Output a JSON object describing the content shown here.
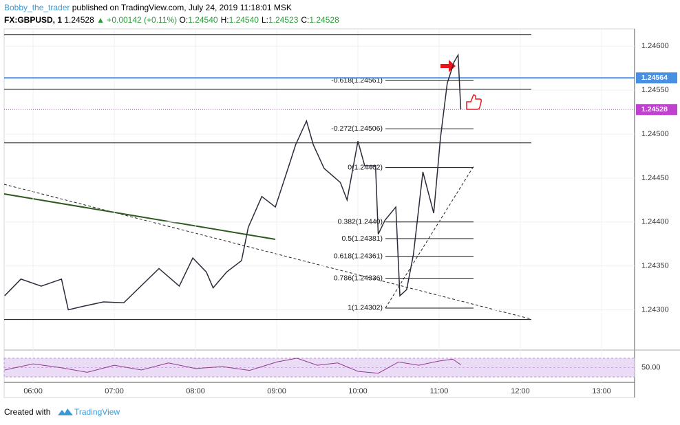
{
  "header": {
    "author": "Bobby_the_trader",
    "published": "published on TradingView.com, July 24, 2019 11:18:01 MSK",
    "symbol": "FX:GBPUSD, 1",
    "last": "1.24528",
    "change": "▲ +0.00142 (+0.11%)",
    "ohlc": [
      {
        "k": "O:",
        "v": "1.24540"
      },
      {
        "k": "H:",
        "v": "1.24540"
      },
      {
        "k": "L:",
        "v": "1.24523"
      },
      {
        "k": "C:",
        "v": "1.24528"
      }
    ]
  },
  "footer": {
    "created": "Created with",
    "brand": "TradingView"
  },
  "chart_data": {
    "type": "line",
    "color": "#2a2a3a",
    "x": [
      339,
      351,
      366,
      381,
      386,
      397,
      412,
      427,
      437,
      453,
      468,
      478,
      488,
      493,
      503,
      514,
      519,
      529,
      539,
      549,
      554,
      562,
      567,
      575,
      587,
      592,
      600,
      605,
      613,
      615,
      620,
      628,
      631,
      636,
      641,
      648,
      656,
      661,
      666,
      671,
      674,
      676
    ],
    "values": [
      1.24316,
      1.24335,
      1.24327,
      1.24335,
      1.243,
      1.24304,
      1.24309,
      1.24308,
      1.24323,
      1.24347,
      1.24327,
      1.24359,
      1.24343,
      1.24325,
      1.24343,
      1.24356,
      1.24394,
      1.24429,
      1.24417,
      1.24464,
      1.24488,
      1.24515,
      1.24488,
      1.24461,
      1.24445,
      1.24425,
      1.24492,
      1.24464,
      1.24464,
      1.24386,
      1.24402,
      1.24417,
      1.24316,
      1.24323,
      1.24363,
      1.24457,
      1.2441,
      1.24496,
      1.24558,
      1.24582,
      1.2459,
      1.24528
    ],
    "xlim": [
      338.6,
      804.4
    ],
    "xticks": [
      {
        "value": 360,
        "label": "06:00"
      },
      {
        "value": 420,
        "label": "07:00"
      },
      {
        "value": 480,
        "label": "08:00"
      },
      {
        "value": 540,
        "label": "09:00"
      },
      {
        "value": 600,
        "label": "10:00"
      },
      {
        "value": 660,
        "label": "11:00"
      },
      {
        "value": 720,
        "label": "12:00"
      },
      {
        "value": 780,
        "label": "13:00"
      }
    ],
    "ylim": [
      1.24255,
      1.24619
    ],
    "yticks": [
      {
        "value": 1.246,
        "label": "1.24600"
      },
      {
        "value": 1.2455,
        "label": "1.24550"
      },
      {
        "value": 1.245,
        "label": "1.24500"
      },
      {
        "value": 1.2445,
        "label": "1.24450"
      },
      {
        "value": 1.244,
        "label": "1.24400"
      },
      {
        "value": 1.2435,
        "label": "1.24350"
      },
      {
        "value": 1.243,
        "label": "1.24300"
      }
    ],
    "grid": true,
    "hlines": [
      1.24613,
      1.24551,
      1.2449,
      1.24289
    ],
    "badges": [
      {
        "value": 1.24564,
        "color": "#4a90e2"
      },
      {
        "value": 1.24528,
        "color": "#c040d0"
      }
    ],
    "fib_levels": [
      {
        "label": "-0.618(1.24561)",
        "value": 1.24561
      },
      {
        "label": "-0.272(1.24506)",
        "value": 1.24506
      },
      {
        "label": "0(1.24462)",
        "value": 1.24462
      },
      {
        "label": "0.382(1.2440)",
        "value": 1.244
      },
      {
        "label": "0.5(1.24381)",
        "value": 1.24381
      },
      {
        "label": "0.618(1.24361)",
        "value": 1.24361
      },
      {
        "label": "0.786(1.24336)",
        "value": 1.24336
      },
      {
        "label": "1(1.24302)",
        "value": 1.24302
      }
    ],
    "rsi": {
      "color": "#8e3b8e",
      "ylim": [
        20,
        86
      ],
      "band": [
        30,
        70
      ],
      "yticks": [
        {
          "value": 50,
          "label": "50.00"
        }
      ],
      "x": [
        339,
        360,
        380,
        400,
        420,
        440,
        460,
        480,
        500,
        520,
        540,
        555,
        570,
        585,
        600,
        615,
        630,
        645,
        660,
        670,
        676
      ],
      "values": [
        45,
        58,
        50,
        40,
        55,
        45,
        60,
        48,
        52,
        44,
        62,
        70,
        55,
        60,
        42,
        38,
        62,
        55,
        64,
        68,
        56
      ]
    }
  }
}
